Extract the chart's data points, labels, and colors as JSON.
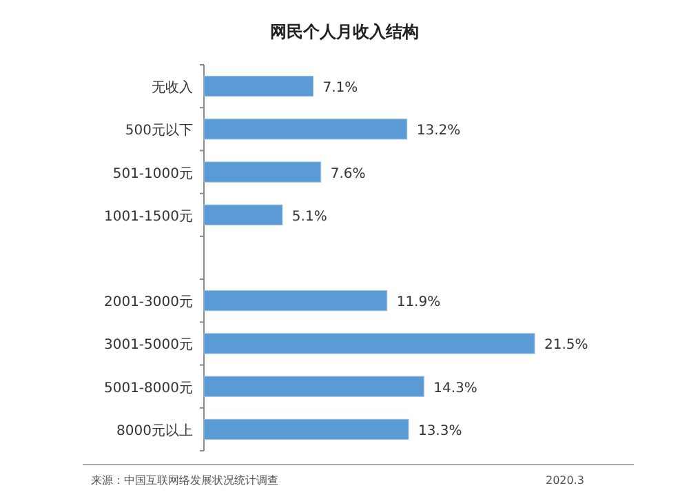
{
  "chart_data": {
    "type": "bar",
    "orientation": "horizontal",
    "title": "网民个人月收入结构",
    "categories": [
      "无收入",
      "500元以下",
      "501-1000元",
      "1001-1500元",
      null,
      "2001-3000元",
      "3001-5000元",
      "5001-8000元",
      "8000元以上"
    ],
    "values": [
      7.1,
      13.2,
      7.6,
      5.1,
      null,
      11.9,
      21.5,
      14.3,
      13.3
    ],
    "value_labels": [
      "7.1%",
      "13.2%",
      "7.6%",
      "5.1%",
      null,
      "11.9%",
      "21.5%",
      "14.3%",
      "13.3%"
    ],
    "color": "#5b9bd5",
    "annotations": [
      "来源：中国互联网络发展状况统计调查",
      "2020.3"
    ]
  }
}
